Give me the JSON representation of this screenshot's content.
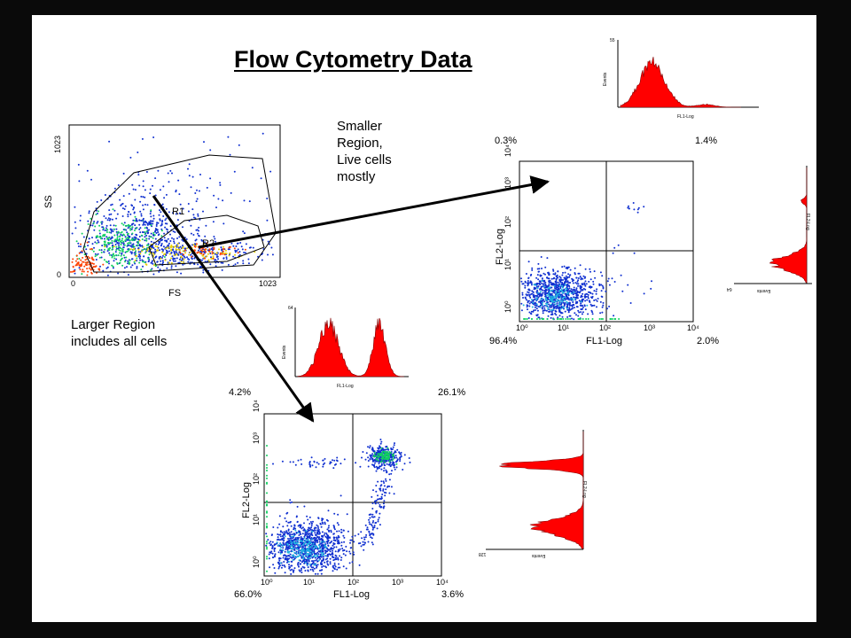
{
  "title": "Flow Cytometry Data",
  "notes": {
    "smaller": "Smaller\nRegion,\nLive cells\nmostly",
    "larger": "Larger Region\nincludes all cells"
  },
  "colors": {
    "background": "#0a0a0a",
    "slide": "#ffffff",
    "histogram_fill": "#ff0000",
    "dot_blue": "#1030d0",
    "dot_green": "#10d060",
    "arrow": "#000000"
  },
  "scatter_plot": {
    "y_axis_label": "SS",
    "x_axis_label": "FS",
    "y_max_tick": "1023",
    "y_min_tick": "0",
    "x_min_tick": "0",
    "x_max_tick": "1023",
    "gate_r1_label": "R1",
    "gate_r2_label": "R2"
  },
  "plot_small": {
    "x_axis_label": "FL1-Log",
    "y_axis_label": "FL2-Log",
    "ticks": [
      "10⁰",
      "10¹",
      "10²",
      "10³",
      "10⁴"
    ],
    "quadrants": {
      "top_left": "0.3%",
      "top_right": "1.4%",
      "bottom_left": "96.4%",
      "bottom_right": "2.0%"
    }
  },
  "plot_large": {
    "x_axis_label": "FL1-Log",
    "y_axis_label": "FL2-Log",
    "ticks": [
      "10⁰",
      "10¹",
      "10²",
      "10³",
      "10⁴"
    ],
    "quadrants": {
      "top_left": "4.2%",
      "top_right": "26.1%",
      "bottom_left": "66.0%",
      "bottom_right": "3.6%"
    }
  },
  "histograms": {
    "top": {
      "y_label": "Events",
      "x_label": "FL1-Log",
      "y_max": "55"
    },
    "middle": {
      "y_label": "Events",
      "x_label": "FL1-Log",
      "y_max": "64"
    },
    "right_small": {
      "y_label": "Events",
      "x_label": "FL2-Log",
      "y_max": "64"
    },
    "right_large": {
      "y_label": "Events",
      "x_label": "FL2-Log",
      "y_max": "128"
    }
  }
}
